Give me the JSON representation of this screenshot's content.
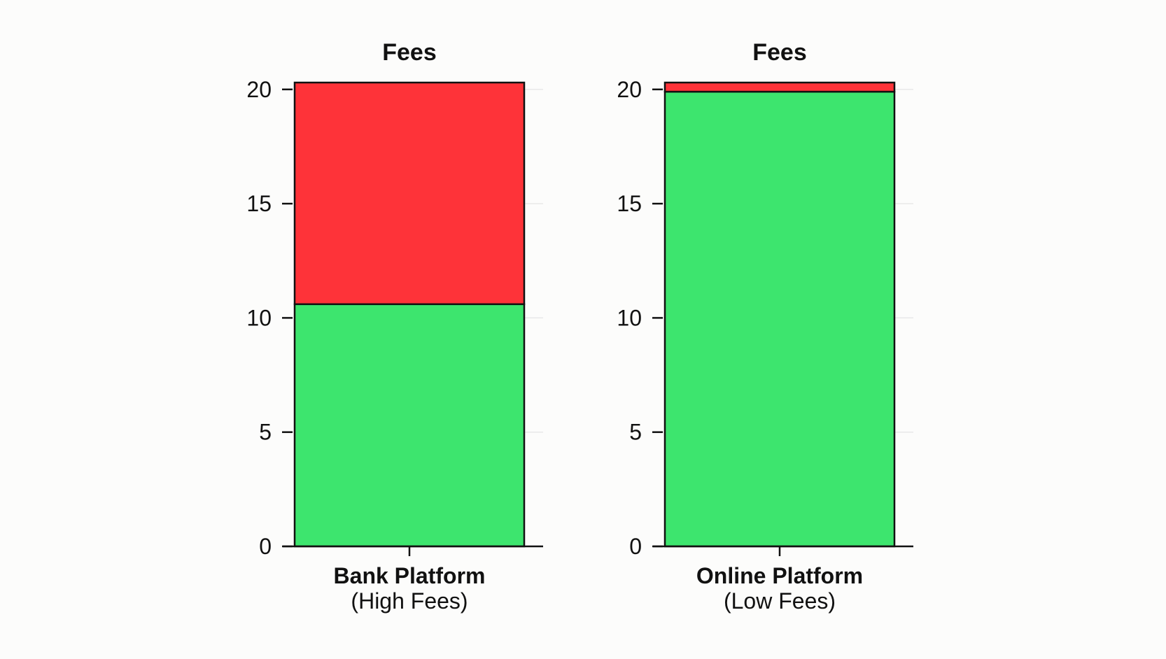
{
  "colors": {
    "green": "#3de56e",
    "red": "#fe3339",
    "axis": "#111111",
    "grid": "#e8e8e8"
  },
  "chart_data": [
    {
      "type": "bar",
      "title": "Fees",
      "categories": [
        "Bank Platform"
      ],
      "category_sublabels": [
        "(High Fees)"
      ],
      "series": [
        {
          "color": "#3de56e",
          "values": [
            10.6
          ]
        },
        {
          "color": "#fe3339",
          "values": [
            9.7
          ]
        }
      ],
      "stacked": true,
      "ylim": [
        0,
        20.3
      ],
      "yticks": [
        0,
        5,
        10,
        15,
        20
      ],
      "grid": "horizontal",
      "xlabel": "",
      "ylabel": ""
    },
    {
      "type": "bar",
      "title": "Fees",
      "categories": [
        "Online Platform"
      ],
      "category_sublabels": [
        "(Low Fees)"
      ],
      "series": [
        {
          "color": "#3de56e",
          "values": [
            19.9
          ]
        },
        {
          "color": "#fe3339",
          "values": [
            0.4
          ]
        }
      ],
      "stacked": true,
      "ylim": [
        0,
        20.3
      ],
      "yticks": [
        0,
        5,
        10,
        15,
        20
      ],
      "grid": "horizontal",
      "xlabel": "",
      "ylabel": ""
    }
  ]
}
